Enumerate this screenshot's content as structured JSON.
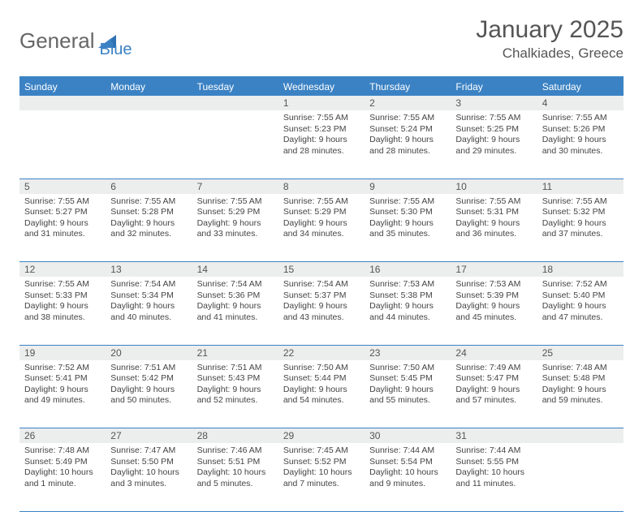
{
  "logo": {
    "text1": "General",
    "text2": "Blue"
  },
  "title": "January 2025",
  "location": "Chalkiades, Greece",
  "colors": {
    "header_bg": "#3b82c4",
    "header_text": "#ffffff",
    "daynum_bg": "#eceded",
    "text": "#555555",
    "body_text": "#444444",
    "border": "#3b82c4"
  },
  "day_headers": [
    "Sunday",
    "Monday",
    "Tuesday",
    "Wednesday",
    "Thursday",
    "Friday",
    "Saturday"
  ],
  "weeks": [
    [
      {
        "num": "",
        "lines": []
      },
      {
        "num": "",
        "lines": []
      },
      {
        "num": "",
        "lines": []
      },
      {
        "num": "1",
        "lines": [
          "Sunrise: 7:55 AM",
          "Sunset: 5:23 PM",
          "Daylight: 9 hours and 28 minutes."
        ]
      },
      {
        "num": "2",
        "lines": [
          "Sunrise: 7:55 AM",
          "Sunset: 5:24 PM",
          "Daylight: 9 hours and 28 minutes."
        ]
      },
      {
        "num": "3",
        "lines": [
          "Sunrise: 7:55 AM",
          "Sunset: 5:25 PM",
          "Daylight: 9 hours and 29 minutes."
        ]
      },
      {
        "num": "4",
        "lines": [
          "Sunrise: 7:55 AM",
          "Sunset: 5:26 PM",
          "Daylight: 9 hours and 30 minutes."
        ]
      }
    ],
    [
      {
        "num": "5",
        "lines": [
          "Sunrise: 7:55 AM",
          "Sunset: 5:27 PM",
          "Daylight: 9 hours and 31 minutes."
        ]
      },
      {
        "num": "6",
        "lines": [
          "Sunrise: 7:55 AM",
          "Sunset: 5:28 PM",
          "Daylight: 9 hours and 32 minutes."
        ]
      },
      {
        "num": "7",
        "lines": [
          "Sunrise: 7:55 AM",
          "Sunset: 5:29 PM",
          "Daylight: 9 hours and 33 minutes."
        ]
      },
      {
        "num": "8",
        "lines": [
          "Sunrise: 7:55 AM",
          "Sunset: 5:29 PM",
          "Daylight: 9 hours and 34 minutes."
        ]
      },
      {
        "num": "9",
        "lines": [
          "Sunrise: 7:55 AM",
          "Sunset: 5:30 PM",
          "Daylight: 9 hours and 35 minutes."
        ]
      },
      {
        "num": "10",
        "lines": [
          "Sunrise: 7:55 AM",
          "Sunset: 5:31 PM",
          "Daylight: 9 hours and 36 minutes."
        ]
      },
      {
        "num": "11",
        "lines": [
          "Sunrise: 7:55 AM",
          "Sunset: 5:32 PM",
          "Daylight: 9 hours and 37 minutes."
        ]
      }
    ],
    [
      {
        "num": "12",
        "lines": [
          "Sunrise: 7:55 AM",
          "Sunset: 5:33 PM",
          "Daylight: 9 hours and 38 minutes."
        ]
      },
      {
        "num": "13",
        "lines": [
          "Sunrise: 7:54 AM",
          "Sunset: 5:34 PM",
          "Daylight: 9 hours and 40 minutes."
        ]
      },
      {
        "num": "14",
        "lines": [
          "Sunrise: 7:54 AM",
          "Sunset: 5:36 PM",
          "Daylight: 9 hours and 41 minutes."
        ]
      },
      {
        "num": "15",
        "lines": [
          "Sunrise: 7:54 AM",
          "Sunset: 5:37 PM",
          "Daylight: 9 hours and 43 minutes."
        ]
      },
      {
        "num": "16",
        "lines": [
          "Sunrise: 7:53 AM",
          "Sunset: 5:38 PM",
          "Daylight: 9 hours and 44 minutes."
        ]
      },
      {
        "num": "17",
        "lines": [
          "Sunrise: 7:53 AM",
          "Sunset: 5:39 PM",
          "Daylight: 9 hours and 45 minutes."
        ]
      },
      {
        "num": "18",
        "lines": [
          "Sunrise: 7:52 AM",
          "Sunset: 5:40 PM",
          "Daylight: 9 hours and 47 minutes."
        ]
      }
    ],
    [
      {
        "num": "19",
        "lines": [
          "Sunrise: 7:52 AM",
          "Sunset: 5:41 PM",
          "Daylight: 9 hours and 49 minutes."
        ]
      },
      {
        "num": "20",
        "lines": [
          "Sunrise: 7:51 AM",
          "Sunset: 5:42 PM",
          "Daylight: 9 hours and 50 minutes."
        ]
      },
      {
        "num": "21",
        "lines": [
          "Sunrise: 7:51 AM",
          "Sunset: 5:43 PM",
          "Daylight: 9 hours and 52 minutes."
        ]
      },
      {
        "num": "22",
        "lines": [
          "Sunrise: 7:50 AM",
          "Sunset: 5:44 PM",
          "Daylight: 9 hours and 54 minutes."
        ]
      },
      {
        "num": "23",
        "lines": [
          "Sunrise: 7:50 AM",
          "Sunset: 5:45 PM",
          "Daylight: 9 hours and 55 minutes."
        ]
      },
      {
        "num": "24",
        "lines": [
          "Sunrise: 7:49 AM",
          "Sunset: 5:47 PM",
          "Daylight: 9 hours and 57 minutes."
        ]
      },
      {
        "num": "25",
        "lines": [
          "Sunrise: 7:48 AM",
          "Sunset: 5:48 PM",
          "Daylight: 9 hours and 59 minutes."
        ]
      }
    ],
    [
      {
        "num": "26",
        "lines": [
          "Sunrise: 7:48 AM",
          "Sunset: 5:49 PM",
          "Daylight: 10 hours and 1 minute."
        ]
      },
      {
        "num": "27",
        "lines": [
          "Sunrise: 7:47 AM",
          "Sunset: 5:50 PM",
          "Daylight: 10 hours and 3 minutes."
        ]
      },
      {
        "num": "28",
        "lines": [
          "Sunrise: 7:46 AM",
          "Sunset: 5:51 PM",
          "Daylight: 10 hours and 5 minutes."
        ]
      },
      {
        "num": "29",
        "lines": [
          "Sunrise: 7:45 AM",
          "Sunset: 5:52 PM",
          "Daylight: 10 hours and 7 minutes."
        ]
      },
      {
        "num": "30",
        "lines": [
          "Sunrise: 7:44 AM",
          "Sunset: 5:54 PM",
          "Daylight: 10 hours and 9 minutes."
        ]
      },
      {
        "num": "31",
        "lines": [
          "Sunrise: 7:44 AM",
          "Sunset: 5:55 PM",
          "Daylight: 10 hours and 11 minutes."
        ]
      },
      {
        "num": "",
        "lines": []
      }
    ]
  ]
}
